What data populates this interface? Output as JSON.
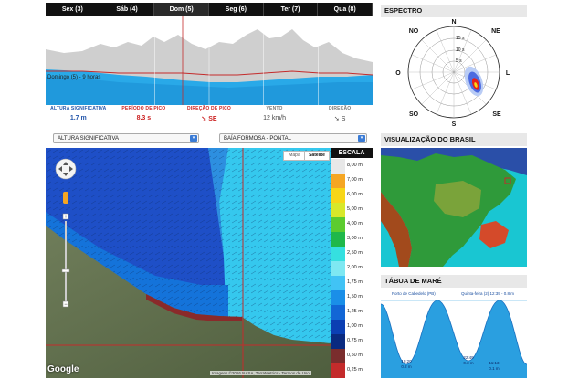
{
  "days": [
    {
      "label": "Sex (3)",
      "active": false
    },
    {
      "label": "Sáb (4)",
      "active": false
    },
    {
      "label": "Dom (5)",
      "active": true
    },
    {
      "label": "Seg (6)",
      "active": false
    },
    {
      "label": "Ter (7)",
      "active": false
    },
    {
      "label": "Qua (8)",
      "active": false
    }
  ],
  "wave_caption": "Domingo (5) - 9 horas",
  "metrics": [
    {
      "label": "ALTURA SIGNIFICATIVA",
      "value": "1.7 m",
      "color": "blue"
    },
    {
      "label": "PERÍODO DE PICO",
      "value": "8.3 s",
      "color": "red"
    },
    {
      "label": "DIREÇÃO DE PICO",
      "value": "SE",
      "color": "red",
      "arrow": true
    },
    {
      "label": "VENTO",
      "value": "12 km/h",
      "color": "gray"
    },
    {
      "label": "DIREÇÃO",
      "value": "S",
      "color": "gray",
      "arrow": true
    }
  ],
  "selects": {
    "variable": "ALTURA SIGNIFICATIVA",
    "location": "BAÍA FORMOSA - PONTAL"
  },
  "map": {
    "type_buttons": [
      "Mapa",
      "Satélite"
    ],
    "google_label": "Google",
    "attribution": "Imagens ©2016 NASA, TerraMetrics - Termos de Uso"
  },
  "scale": {
    "title": "ESCALA",
    "items": [
      {
        "label": "8,00 m",
        "color": "#e8e8e8"
      },
      {
        "label": "7,00 m",
        "color": "#f5a623"
      },
      {
        "label": "6,00 m",
        "color": "#f7d617"
      },
      {
        "label": "5,00 m",
        "color": "#d8e82a"
      },
      {
        "label": "4,00 m",
        "color": "#5ccc2f"
      },
      {
        "label": "3,00 m",
        "color": "#1fb84a"
      },
      {
        "label": "2,50 m",
        "color": "#35e0e0"
      },
      {
        "label": "2,00 m",
        "color": "#7ee8f2"
      },
      {
        "label": "1,75 m",
        "color": "#41c3f5"
      },
      {
        "label": "1,50 m",
        "color": "#1a8fe8"
      },
      {
        "label": "1,25 m",
        "color": "#1266d6"
      },
      {
        "label": "1,00 m",
        "color": "#0b3fb3"
      },
      {
        "label": "0,75 m",
        "color": "#0a2a80"
      },
      {
        "label": "0,50 m",
        "color": "#7a2d2d"
      },
      {
        "label": "0,25 m",
        "color": "#c42b2b"
      }
    ]
  },
  "spectro": {
    "title": "ESPECTRO",
    "dirs": {
      "N": "N",
      "NE": "NE",
      "L": "L",
      "SE": "SE",
      "S": "S",
      "SO": "SO",
      "O": "O",
      "NO": "NO"
    },
    "rings": [
      "15 s",
      "10 s",
      "5 s"
    ]
  },
  "brazil": {
    "title": "VISUALIZAÇÃO DO BRASIL"
  },
  "tide": {
    "title": "TÁBUA DE MARÉ",
    "port": "Porto de Cabedelo (PB)",
    "next": "Quinta-feira (2) 12:39 - 0.8 m",
    "day_left": "Quinta-feira",
    "day_right": "Sexta-feira",
    "lows": [
      {
        "time": "10:20",
        "height": "0.2 m"
      },
      {
        "time": "22:49",
        "height": "0.3 m"
      },
      {
        "time": "11:13",
        "height": "0.1 m"
      }
    ]
  }
}
